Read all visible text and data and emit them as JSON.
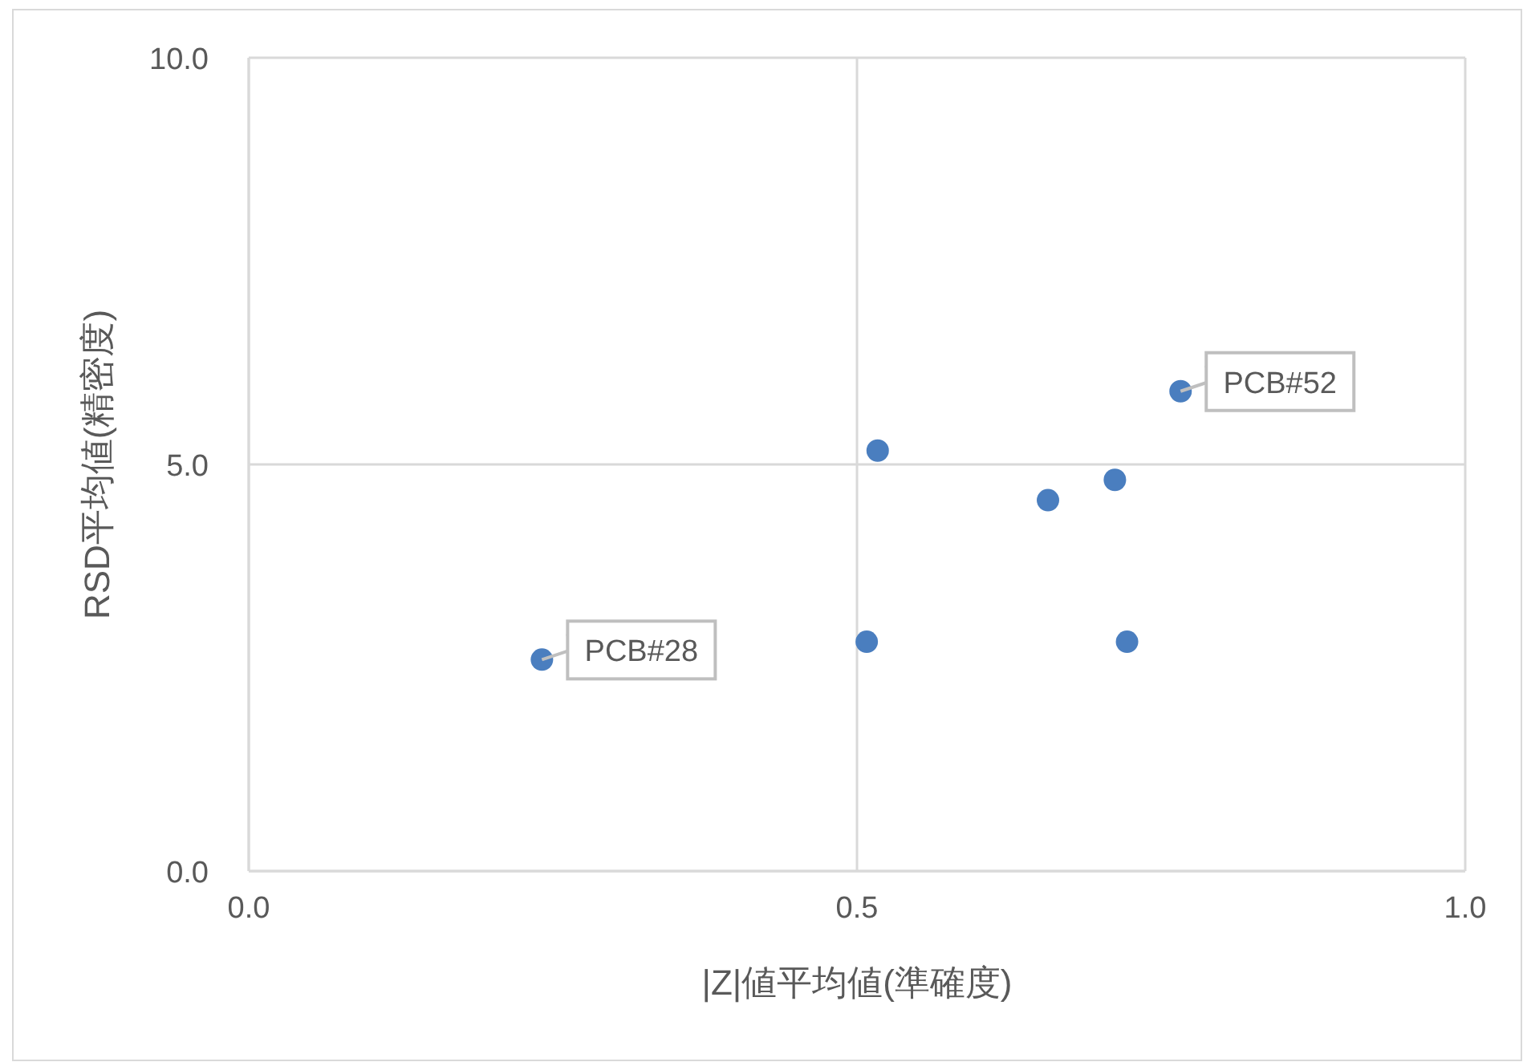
{
  "chart_data": {
    "type": "scatter",
    "xlabel": "|Z|値平均値(準確度)",
    "ylabel": "RSD平均値(精密度)",
    "x": [
      0.241,
      0.508,
      0.517,
      0.657,
      0.712,
      0.722,
      0.766
    ],
    "series": [
      {
        "color": "#4a7ebf",
        "values": [
          2.6,
          2.82,
          5.17,
          4.56,
          4.81,
          2.82,
          5.9
        ]
      }
    ],
    "xlim": [
      0,
      1
    ],
    "ylim": [
      0,
      10
    ],
    "xticks": [
      {
        "value": 0,
        "label": "0.0"
      },
      {
        "value": 0.5,
        "label": "0.5"
      },
      {
        "value": 1,
        "label": "1.0"
      }
    ],
    "yticks": [
      {
        "value": 0,
        "label": "0.0"
      },
      {
        "value": 5,
        "label": "5.0"
      },
      {
        "value": 10,
        "label": "10.0"
      }
    ],
    "grid": true,
    "marker": "circle",
    "annotations": [
      {
        "text": "PCB#28",
        "x": 0.241,
        "y": 2.6
      },
      {
        "text": "PCB#52",
        "x": 0.766,
        "y": 5.9
      }
    ]
  }
}
